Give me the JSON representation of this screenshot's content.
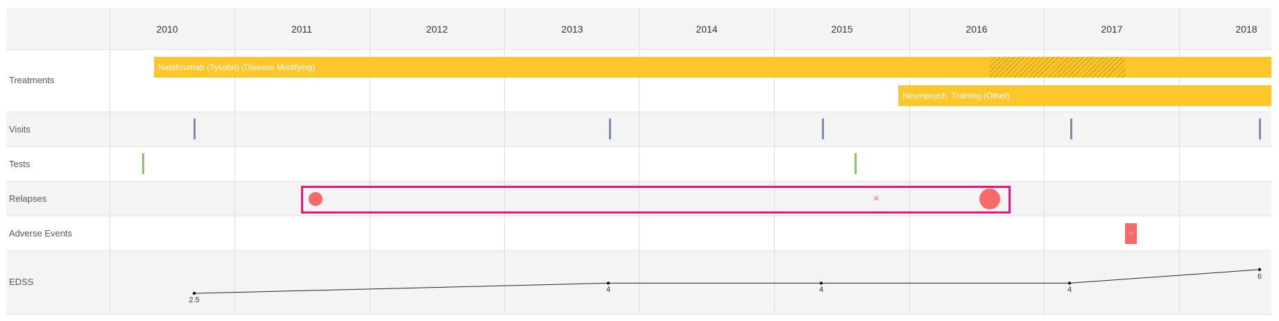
{
  "years": [
    "2010",
    "2011",
    "2012",
    "2013",
    "2014",
    "2015",
    "2016",
    "2017",
    "2018"
  ],
  "rows": {
    "treatments": "Treatments",
    "visits": "Visits",
    "tests": "Tests",
    "relapses": "Relapses",
    "adverse_events": "Adverse Events",
    "edss": "EDSS"
  },
  "treatments": [
    {
      "label": "Natalizumab (Tysabri) (Disease Modifying)",
      "start_year": 2009.9,
      "end_year": 2018.2,
      "hatch_start_year": 2016.1,
      "hatch_end_year": 2017.1
    },
    {
      "label": "Neuropsych. Training (Other)",
      "start_year": 2015.42,
      "end_year": 2018.2
    }
  ],
  "visits_years": [
    2010.2,
    2013.28,
    2014.86,
    2016.7,
    2018.1
  ],
  "tests_years": [
    2009.82,
    2015.1
  ],
  "relapses": [
    {
      "year": 2011.1,
      "kind": "dot",
      "size": "medium"
    },
    {
      "year": 2015.26,
      "kind": "x"
    },
    {
      "year": 2016.1,
      "kind": "dot",
      "size": "large"
    }
  ],
  "relapses_highlight": {
    "start_year": 2010.99,
    "end_year": 2016.25
  },
  "adverse_events": [
    {
      "year": 2017.14,
      "glyph": "○"
    }
  ],
  "edss": [
    {
      "year": 2010.2,
      "value": "2.5"
    },
    {
      "year": 2013.27,
      "value": "4"
    },
    {
      "year": 2014.85,
      "value": "4"
    },
    {
      "year": 2016.69,
      "value": "4"
    },
    {
      "year": 2018.1,
      "value": "6"
    }
  ],
  "colors": {
    "treatment": "#fdc62a",
    "visit": "#7b8bab",
    "test": "#86c66b",
    "relapse": "#f86a6a",
    "highlight": "#e8157e"
  }
}
